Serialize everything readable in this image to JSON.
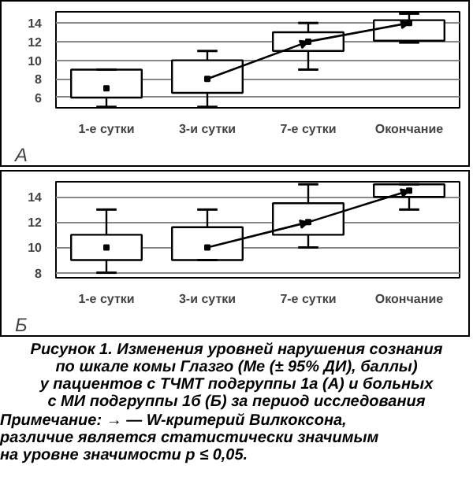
{
  "chart_data": [
    {
      "type": "box",
      "categories": [
        "1-е сутки",
        "3-и сутки",
        "7-е сутки",
        "Окончание"
      ],
      "boxes": [
        {
          "low": 5,
          "q1": 6,
          "median": 7,
          "q3": 9,
          "high": 9
        },
        {
          "low": 5,
          "q1": 6.5,
          "median": 8,
          "q3": 10,
          "high": 11
        },
        {
          "low": 9,
          "q1": 11,
          "median": 12,
          "q3": 13,
          "high": 14
        },
        {
          "low": 11.9,
          "q1": 12.1,
          "median": 14,
          "q3": 14.3,
          "high": 15
        }
      ],
      "series": [
        {
          "type": "line",
          "color": "#000000",
          "values": [
            null,
            8,
            12,
            14
          ]
        }
      ],
      "ylim": [
        4.9,
        15.2
      ],
      "yticks": [
        6,
        8,
        10,
        12,
        14
      ],
      "grid": "y",
      "annotations": [
        "А"
      ]
    },
    {
      "type": "box",
      "categories": [
        "1-е сутки",
        "3-и сутки",
        "7-е сутки",
        "Окончание"
      ],
      "boxes": [
        {
          "low": 8,
          "q1": 9,
          "median": 10,
          "q3": 11,
          "high": 13
        },
        {
          "low": 9,
          "q1": 9,
          "median": 10,
          "q3": 11.6,
          "high": 13
        },
        {
          "low": 10,
          "q1": 11,
          "median": 12,
          "q3": 13.5,
          "high": 15
        },
        {
          "low": 13,
          "q1": 14,
          "median": 14.5,
          "q3": 15,
          "high": 15
        }
      ],
      "series": [
        {
          "type": "line",
          "color": "#000000",
          "values": [
            null,
            10,
            12,
            14.5
          ]
        }
      ],
      "ylim": [
        7.6,
        15.2
      ],
      "yticks": [
        8,
        10,
        12,
        14
      ],
      "grid": "y",
      "annotations": [
        "Б",
        "Рисунок 1. Изменения уровней нарушения сознания\nпо шкале комы Глазго (Ме (± 95% ДИ), баллы)\nу пациентов с ТЧМТ подгруппы 1а (А) и больных\nс МИ подгруппы 1б (Б) за период исследования",
        "Примечание: → — W-критерий Вилкоксона,\nразличие является статистически значимым\nна уровне значимости p ≤ 0,05."
      ]
    }
  ]
}
